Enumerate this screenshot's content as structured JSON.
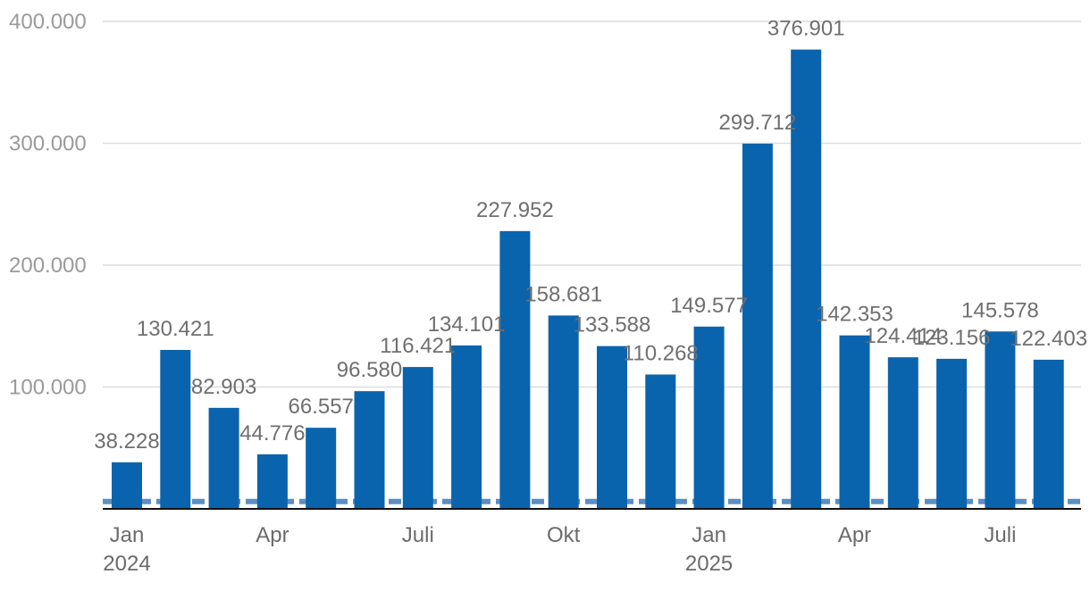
{
  "chart_data": {
    "type": "bar",
    "title": "",
    "xlabel": "",
    "ylabel": "",
    "ylim": [
      0,
      400000
    ],
    "yticks": [
      {
        "value": 100000,
        "label": "100.000"
      },
      {
        "value": 200000,
        "label": "200.000"
      },
      {
        "value": 300000,
        "label": "300.000"
      },
      {
        "value": 400000,
        "label": "400.000"
      }
    ],
    "categories": [
      "Jan 2024",
      "Feb 2024",
      "Mär 2024",
      "Apr 2024",
      "Mai 2024",
      "Jun 2024",
      "Jul 2024",
      "Aug 2024",
      "Sep 2024",
      "Okt 2024",
      "Nov 2024",
      "Dez 2024",
      "Jan 2025",
      "Feb 2025",
      "Mär 2025",
      "Apr 2025",
      "Mai 2025",
      "Jun 2025",
      "Jul 2025",
      "Aug 2025"
    ],
    "values": [
      38228,
      130421,
      82903,
      44776,
      66557,
      96580,
      116421,
      134101,
      227952,
      158681,
      133588,
      110268,
      149577,
      299712,
      376901,
      142353,
      124414,
      123156,
      145578,
      122403
    ],
    "value_labels": [
      "38.228",
      "130.421",
      "82.903",
      "44.776",
      "66.557",
      "96.580",
      "116.421",
      "134.101",
      "227.952",
      "158.681",
      "133.588",
      "110.268",
      "149.577",
      "299.712",
      "376.901",
      "142.353",
      "124.414",
      "123.156",
      "145.578",
      "122.403"
    ],
    "xtick_labels": [
      {
        "index": 0,
        "line1": "Jan",
        "line2": "2024"
      },
      {
        "index": 3,
        "line1": "Apr",
        "line2": ""
      },
      {
        "index": 6,
        "line1": "Juli",
        "line2": ""
      },
      {
        "index": 9,
        "line1": "Okt",
        "line2": ""
      },
      {
        "index": 12,
        "line1": "Jan",
        "line2": "2025"
      },
      {
        "index": 15,
        "line1": "Apr",
        "line2": ""
      },
      {
        "index": 18,
        "line1": "Juli",
        "line2": ""
      }
    ],
    "reference_line": {
      "value": 6000,
      "style": "dashed"
    },
    "colors": {
      "bar": "#0a64ad",
      "reference": "#5b8fc4",
      "axis": "#111111"
    },
    "grid": true,
    "legend": "none"
  }
}
